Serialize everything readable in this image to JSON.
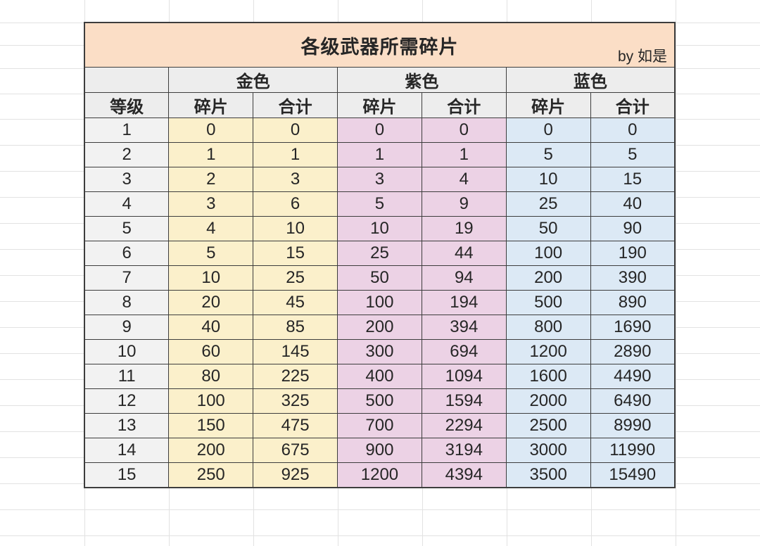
{
  "title": {
    "text": "各级武器所需碎片",
    "byline": "by 如是"
  },
  "table": {
    "level_header": "等级",
    "sub_headers": [
      "碎片",
      "合计"
    ],
    "groups": [
      {
        "label": "金色",
        "color": "#FBF0CB"
      },
      {
        "label": "紫色",
        "color": "#ECD2E5"
      },
      {
        "label": "蓝色",
        "color": "#DCE9F5"
      }
    ],
    "rows": [
      {
        "level": "1",
        "gold": [
          "0",
          "0"
        ],
        "purple": [
          "0",
          "0"
        ],
        "blue": [
          "0",
          "0"
        ]
      },
      {
        "level": "2",
        "gold": [
          "1",
          "1"
        ],
        "purple": [
          "1",
          "1"
        ],
        "blue": [
          "5",
          "5"
        ]
      },
      {
        "level": "3",
        "gold": [
          "2",
          "3"
        ],
        "purple": [
          "3",
          "4"
        ],
        "blue": [
          "10",
          "15"
        ]
      },
      {
        "level": "4",
        "gold": [
          "3",
          "6"
        ],
        "purple": [
          "5",
          "9"
        ],
        "blue": [
          "25",
          "40"
        ]
      },
      {
        "level": "5",
        "gold": [
          "4",
          "10"
        ],
        "purple": [
          "10",
          "19"
        ],
        "blue": [
          "50",
          "90"
        ]
      },
      {
        "level": "6",
        "gold": [
          "5",
          "15"
        ],
        "purple": [
          "25",
          "44"
        ],
        "blue": [
          "100",
          "190"
        ]
      },
      {
        "level": "7",
        "gold": [
          "10",
          "25"
        ],
        "purple": [
          "50",
          "94"
        ],
        "blue": [
          "200",
          "390"
        ]
      },
      {
        "level": "8",
        "gold": [
          "20",
          "45"
        ],
        "purple": [
          "100",
          "194"
        ],
        "blue": [
          "500",
          "890"
        ]
      },
      {
        "level": "9",
        "gold": [
          "40",
          "85"
        ],
        "purple": [
          "200",
          "394"
        ],
        "blue": [
          "800",
          "1690"
        ]
      },
      {
        "level": "10",
        "gold": [
          "60",
          "145"
        ],
        "purple": [
          "300",
          "694"
        ],
        "blue": [
          "1200",
          "2890"
        ]
      },
      {
        "level": "11",
        "gold": [
          "80",
          "225"
        ],
        "purple": [
          "400",
          "1094"
        ],
        "blue": [
          "1600",
          "4490"
        ]
      },
      {
        "level": "12",
        "gold": [
          "100",
          "325"
        ],
        "purple": [
          "500",
          "1594"
        ],
        "blue": [
          "2000",
          "6490"
        ]
      },
      {
        "level": "13",
        "gold": [
          "150",
          "475"
        ],
        "purple": [
          "700",
          "2294"
        ],
        "blue": [
          "2500",
          "8990"
        ]
      },
      {
        "level": "14",
        "gold": [
          "200",
          "675"
        ],
        "purple": [
          "900",
          "3194"
        ],
        "blue": [
          "3000",
          "11990"
        ]
      },
      {
        "level": "15",
        "gold": [
          "250",
          "925"
        ],
        "purple": [
          "1200",
          "4394"
        ],
        "blue": [
          "3500",
          "15490"
        ]
      }
    ]
  },
  "colors": {
    "title_bg": "#FBDEC6",
    "header_bg": "#EDEDED",
    "level_bg": "#F2F2F2",
    "border": "#3D3D3D",
    "grid_line": "#E2E2E2",
    "text": "#262626"
  }
}
